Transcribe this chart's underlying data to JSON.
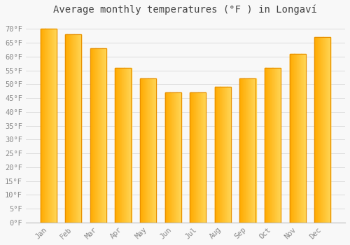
{
  "title": "Average monthly temperatures (°F ) in Longaví",
  "months": [
    "Jan",
    "Feb",
    "Mar",
    "Apr",
    "May",
    "Jun",
    "Jul",
    "Aug",
    "Sep",
    "Oct",
    "Nov",
    "Dec"
  ],
  "values": [
    70,
    68,
    63,
    56,
    52,
    47,
    47,
    49,
    52,
    56,
    61,
    67
  ],
  "bar_color_main": "#FFAA00",
  "bar_color_light": "#FFD966",
  "bar_color_edge": "#E89000",
  "background_color": "#f8f8f8",
  "grid_color": "#dddddd",
  "tick_label_color": "#888888",
  "title_color": "#444444",
  "ylim": [
    0,
    73
  ],
  "yticks": [
    0,
    5,
    10,
    15,
    20,
    25,
    30,
    35,
    40,
    45,
    50,
    55,
    60,
    65,
    70
  ],
  "ytick_labels": [
    "0°F",
    "5°F",
    "10°F",
    "15°F",
    "20°F",
    "25°F",
    "30°F",
    "35°F",
    "40°F",
    "45°F",
    "50°F",
    "55°F",
    "60°F",
    "65°F",
    "70°F"
  ],
  "title_fontsize": 10,
  "tick_fontsize": 7.5,
  "figsize": [
    5.0,
    3.5
  ],
  "dpi": 100,
  "bar_width": 0.65
}
